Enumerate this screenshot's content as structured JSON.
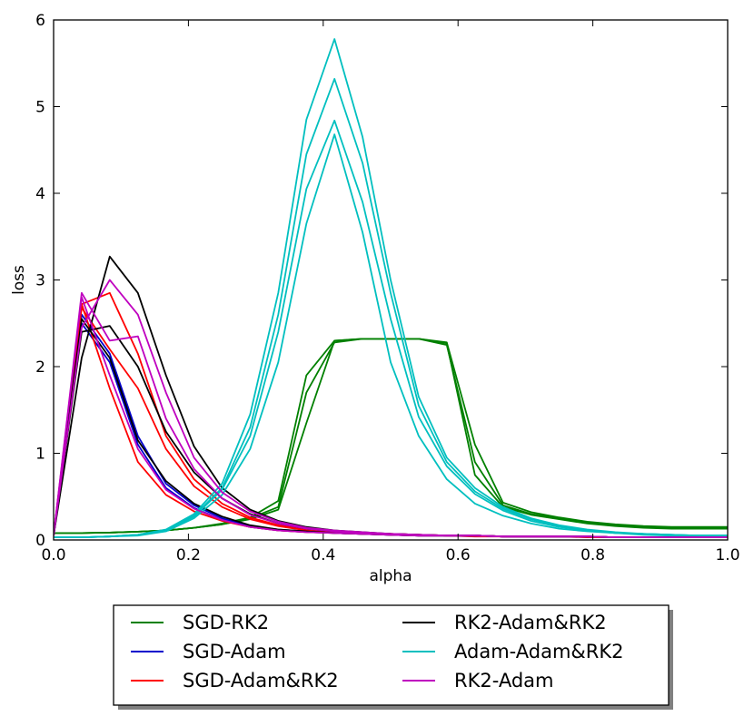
{
  "chart_data": {
    "type": "line",
    "title": "",
    "xlabel": "alpha",
    "ylabel": "loss",
    "xlim": [
      0.0,
      1.0
    ],
    "ylim": [
      0,
      6
    ],
    "x_ticks": [
      "0.0",
      "0.2",
      "0.4",
      "0.6",
      "0.8",
      "1.0"
    ],
    "y_ticks": [
      "0",
      "1",
      "2",
      "3",
      "4",
      "5",
      "6"
    ],
    "grid": false,
    "legend_position": "bottom-center",
    "x": [
      0.0,
      0.0417,
      0.0833,
      0.125,
      0.1667,
      0.2083,
      0.25,
      0.2917,
      0.3333,
      0.375,
      0.4167,
      0.4583,
      0.5,
      0.5417,
      0.5833,
      0.625,
      0.6667,
      0.7083,
      0.75,
      0.7917,
      0.8333,
      0.875,
      0.9167,
      0.9583,
      1.0
    ],
    "series": [
      {
        "name": "SGD-RK2",
        "color": "#008000",
        "show_in_legend": true,
        "values": [
          0.08,
          0.08,
          0.085,
          0.095,
          0.11,
          0.14,
          0.19,
          0.26,
          0.45,
          1.9,
          2.3,
          2.32,
          2.32,
          2.32,
          2.28,
          1.1,
          0.43,
          0.32,
          0.26,
          0.21,
          0.18,
          0.16,
          0.15,
          0.15,
          0.15
        ]
      },
      {
        "name": "SGD-RK2",
        "color": "#008000",
        "show_in_legend": false,
        "values": [
          0.08,
          0.08,
          0.085,
          0.095,
          0.11,
          0.14,
          0.18,
          0.25,
          0.38,
          1.7,
          2.28,
          2.32,
          2.32,
          2.32,
          2.25,
          0.9,
          0.4,
          0.3,
          0.25,
          0.2,
          0.17,
          0.15,
          0.14,
          0.14,
          0.14
        ]
      },
      {
        "name": "SGD-RK2",
        "color": "#008000",
        "show_in_legend": false,
        "values": [
          0.08,
          0.08,
          0.085,
          0.095,
          0.11,
          0.14,
          0.18,
          0.24,
          0.35,
          1.35,
          2.3,
          2.32,
          2.32,
          2.32,
          2.27,
          0.75,
          0.38,
          0.29,
          0.24,
          0.19,
          0.16,
          0.14,
          0.13,
          0.13,
          0.13
        ]
      },
      {
        "name": "SGD-Adam",
        "color": "#0000cc",
        "show_in_legend": true,
        "values": [
          0.05,
          2.6,
          2.15,
          1.2,
          0.65,
          0.4,
          0.25,
          0.16,
          0.12,
          0.1,
          0.08,
          0.07,
          0.06,
          0.05,
          0.05,
          0.05,
          0.04,
          0.04,
          0.04,
          0.04,
          0.03,
          0.03,
          0.03,
          0.03,
          0.03
        ]
      },
      {
        "name": "SGD-Adam",
        "color": "#0000cc",
        "show_in_legend": false,
        "values": [
          0.05,
          2.5,
          2.05,
          1.1,
          0.6,
          0.37,
          0.23,
          0.15,
          0.11,
          0.09,
          0.08,
          0.07,
          0.06,
          0.05,
          0.05,
          0.05,
          0.04,
          0.04,
          0.04,
          0.04,
          0.03,
          0.03,
          0.03,
          0.03,
          0.03
        ]
      },
      {
        "name": "SGD-Adam&RK2",
        "color": "#ff0000",
        "show_in_legend": true,
        "values": [
          0.05,
          2.72,
          2.85,
          2.15,
          1.2,
          0.7,
          0.42,
          0.26,
          0.17,
          0.12,
          0.09,
          0.08,
          0.07,
          0.06,
          0.05,
          0.05,
          0.04,
          0.04,
          0.04,
          0.04,
          0.03,
          0.03,
          0.03,
          0.03,
          0.03
        ]
      },
      {
        "name": "SGD-Adam&RK2",
        "color": "#ff0000",
        "show_in_legend": false,
        "values": [
          0.05,
          2.68,
          2.2,
          1.75,
          1.05,
          0.62,
          0.38,
          0.24,
          0.16,
          0.11,
          0.09,
          0.08,
          0.07,
          0.06,
          0.05,
          0.05,
          0.04,
          0.04,
          0.04,
          0.04,
          0.03,
          0.03,
          0.03,
          0.03,
          0.03
        ]
      },
      {
        "name": "SGD-Adam&RK2",
        "color": "#ff0000",
        "show_in_legend": false,
        "values": [
          0.05,
          2.72,
          1.75,
          0.9,
          0.52,
          0.33,
          0.22,
          0.15,
          0.11,
          0.09,
          0.08,
          0.07,
          0.06,
          0.05,
          0.05,
          0.04,
          0.04,
          0.04,
          0.04,
          0.03,
          0.03,
          0.03,
          0.03,
          0.03,
          0.03
        ]
      },
      {
        "name": "RK2-Adam&RK2",
        "color": "#000000",
        "show_in_legend": true,
        "values": [
          0.05,
          2.1,
          3.27,
          2.85,
          1.9,
          1.08,
          0.6,
          0.35,
          0.22,
          0.15,
          0.11,
          0.09,
          0.07,
          0.06,
          0.05,
          0.05,
          0.04,
          0.04,
          0.04,
          0.04,
          0.03,
          0.03,
          0.03,
          0.03,
          0.03
        ]
      },
      {
        "name": "RK2-Adam&RK2",
        "color": "#000000",
        "show_in_legend": false,
        "values": [
          0.05,
          2.4,
          2.47,
          2.0,
          1.25,
          0.78,
          0.48,
          0.3,
          0.19,
          0.13,
          0.1,
          0.08,
          0.07,
          0.06,
          0.05,
          0.05,
          0.04,
          0.04,
          0.04,
          0.04,
          0.03,
          0.03,
          0.03,
          0.03,
          0.03
        ]
      },
      {
        "name": "RK2-Adam&RK2",
        "color": "#000000",
        "show_in_legend": false,
        "values": [
          0.05,
          2.55,
          2.1,
          1.15,
          0.68,
          0.42,
          0.27,
          0.17,
          0.12,
          0.1,
          0.08,
          0.07,
          0.06,
          0.05,
          0.05,
          0.05,
          0.04,
          0.04,
          0.04,
          0.04,
          0.03,
          0.03,
          0.03,
          0.03,
          0.03
        ]
      },
      {
        "name": "Adam-Adam&RK2",
        "color": "#00bfbf",
        "show_in_legend": true,
        "values": [
          0.03,
          0.03,
          0.04,
          0.06,
          0.12,
          0.3,
          0.65,
          1.45,
          2.85,
          4.85,
          5.78,
          4.65,
          3.0,
          1.65,
          0.95,
          0.6,
          0.38,
          0.25,
          0.17,
          0.12,
          0.09,
          0.07,
          0.06,
          0.05,
          0.05
        ]
      },
      {
        "name": "Adam-Adam&RK2",
        "color": "#00bfbf",
        "show_in_legend": false,
        "values": [
          0.03,
          0.03,
          0.04,
          0.06,
          0.11,
          0.28,
          0.6,
          1.3,
          2.6,
          4.45,
          5.32,
          4.35,
          2.85,
          1.55,
          0.9,
          0.56,
          0.36,
          0.24,
          0.16,
          0.11,
          0.08,
          0.07,
          0.06,
          0.05,
          0.05
        ]
      },
      {
        "name": "Adam-Adam&RK2",
        "color": "#00bfbf",
        "show_in_legend": false,
        "values": [
          0.03,
          0.03,
          0.04,
          0.06,
          0.11,
          0.27,
          0.58,
          1.2,
          2.4,
          4.05,
          4.84,
          3.9,
          2.55,
          1.42,
          0.85,
          0.53,
          0.34,
          0.22,
          0.15,
          0.11,
          0.08,
          0.07,
          0.06,
          0.05,
          0.05
        ]
      },
      {
        "name": "Adam-Adam&RK2",
        "color": "#00bfbf",
        "show_in_legend": false,
        "values": [
          0.03,
          0.03,
          0.04,
          0.05,
          0.1,
          0.25,
          0.52,
          1.05,
          2.05,
          3.65,
          4.68,
          3.55,
          2.05,
          1.2,
          0.7,
          0.42,
          0.28,
          0.19,
          0.13,
          0.1,
          0.08,
          0.06,
          0.05,
          0.05,
          0.05
        ]
      },
      {
        "name": "RK2-Adam",
        "color": "#bf00bf",
        "show_in_legend": true,
        "values": [
          0.05,
          2.45,
          3.0,
          2.6,
          1.7,
          0.95,
          0.55,
          0.33,
          0.21,
          0.14,
          0.11,
          0.09,
          0.07,
          0.06,
          0.05,
          0.05,
          0.04,
          0.04,
          0.04,
          0.04,
          0.03,
          0.03,
          0.03,
          0.03,
          0.03
        ]
      },
      {
        "name": "RK2-Adam",
        "color": "#bf00bf",
        "show_in_legend": false,
        "values": [
          0.05,
          2.85,
          2.3,
          2.35,
          1.4,
          0.82,
          0.48,
          0.29,
          0.19,
          0.13,
          0.1,
          0.08,
          0.07,
          0.06,
          0.05,
          0.05,
          0.04,
          0.04,
          0.04,
          0.04,
          0.03,
          0.03,
          0.03,
          0.03,
          0.03
        ]
      },
      {
        "name": "RK2-Adam",
        "color": "#bf00bf",
        "show_in_legend": false,
        "values": [
          0.05,
          2.8,
          1.9,
          1.05,
          0.58,
          0.36,
          0.23,
          0.15,
          0.11,
          0.09,
          0.08,
          0.07,
          0.06,
          0.05,
          0.05,
          0.05,
          0.04,
          0.04,
          0.04,
          0.04,
          0.03,
          0.03,
          0.03,
          0.03,
          0.03
        ]
      }
    ],
    "legend": [
      {
        "label": "SGD-RK2",
        "color": "#008000"
      },
      {
        "label": "SGD-Adam",
        "color": "#0000cc"
      },
      {
        "label": "SGD-Adam&RK2",
        "color": "#ff0000"
      },
      {
        "label": "RK2-Adam&RK2",
        "color": "#000000"
      },
      {
        "label": "Adam-Adam&RK2",
        "color": "#00bfbf"
      },
      {
        "label": "RK2-Adam",
        "color": "#bf00bf"
      }
    ]
  }
}
